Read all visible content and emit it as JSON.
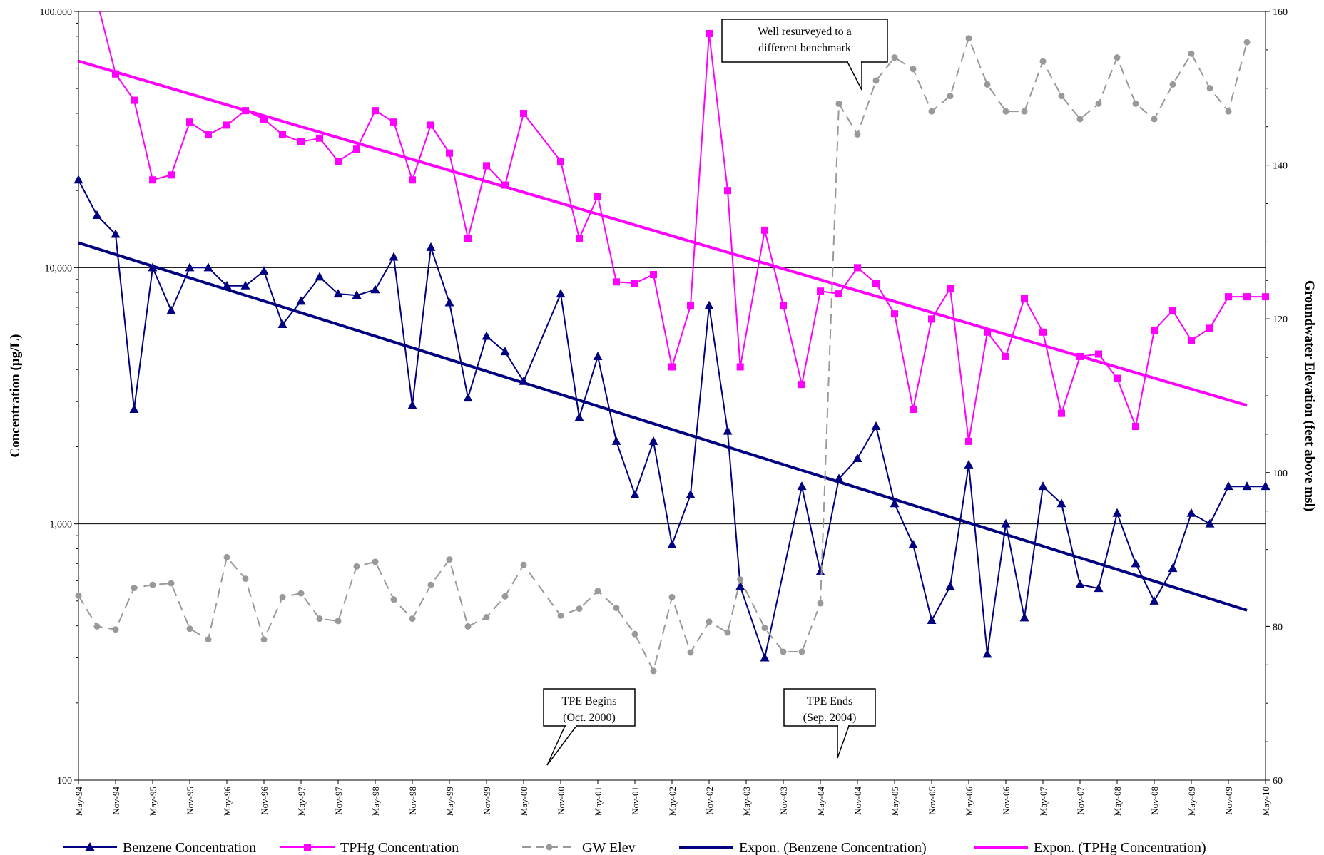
{
  "chart_data": {
    "type": "line",
    "x_tick_labels": [
      "May-94",
      "Nov-94",
      "May-95",
      "Nov-95",
      "May-96",
      "Nov-96",
      "May-97",
      "Nov-97",
      "May-98",
      "Nov-98",
      "May-99",
      "Nov-99",
      "May-00",
      "Nov-00",
      "May-01",
      "Nov-01",
      "May-02",
      "Nov-02",
      "May-03",
      "Nov-03",
      "May-04",
      "Nov-04",
      "May-05",
      "Nov-05",
      "May-06",
      "Nov-06",
      "May-07",
      "Nov-07",
      "May-08",
      "Nov-08",
      "May-09",
      "Nov-09",
      "May-10"
    ],
    "x_range": [
      1994.0,
      2010.0
    ],
    "y_left": {
      "label": "Concentration (µg/L)",
      "scale": "log",
      "range": [
        100,
        100000
      ],
      "ticks": [
        100,
        1000,
        10000,
        100000
      ],
      "tick_labels": [
        "100",
        "1,000",
        "10,000",
        "100,000"
      ]
    },
    "y_right": {
      "label": "Groundwater Elevation (feet above msl)",
      "range": [
        60,
        160
      ],
      "ticks": [
        60,
        80,
        100,
        120,
        140,
        160
      ],
      "tick_labels": [
        "60",
        "80",
        "100",
        "120",
        "140",
        "160"
      ]
    },
    "gridlines": "major horizontal (left axis)",
    "legend_position": "bottom",
    "series": [
      {
        "name": "Benzene Concentration",
        "axis": "left",
        "color": "#000080",
        "marker": "triangle",
        "x": [
          1994.0,
          1994.25,
          1994.5,
          1994.75,
          1995.0,
          1995.25,
          1995.5,
          1995.75,
          1996.0,
          1996.25,
          1996.5,
          1996.75,
          1997.0,
          1997.25,
          1997.5,
          1997.75,
          1998.0,
          1998.25,
          1998.5,
          1998.75,
          1999.0,
          1999.25,
          1999.5,
          1999.75,
          2000.0,
          2000.5,
          2000.75,
          2001.0,
          2001.25,
          2001.5,
          2001.75,
          2002.0,
          2002.25,
          2002.5,
          2002.75,
          2002.92,
          2003.25,
          2003.75,
          2004.0,
          2004.25,
          2004.5,
          2004.75,
          2005.0,
          2005.25,
          2005.5,
          2005.75,
          2006.0,
          2006.25,
          2006.5,
          2006.75,
          2007.0,
          2007.25,
          2007.5,
          2007.75,
          2008.0,
          2008.25,
          2008.5,
          2008.75,
          2009.0,
          2009.25,
          2009.5,
          2009.75,
          2010.0
        ],
        "y": [
          22000,
          16000,
          13500,
          2800,
          10000,
          6800,
          10000,
          10000,
          8500,
          8500,
          9700,
          6000,
          7400,
          9200,
          7900,
          7800,
          8200,
          11000,
          2900,
          12000,
          7300,
          3100,
          5400,
          4700,
          3600,
          7900,
          2600,
          4500,
          2100,
          1300,
          2100,
          830,
          1300,
          7100,
          2300,
          570,
          300,
          1400,
          650,
          1500,
          1800,
          2400,
          1200,
          830,
          420,
          570,
          1700,
          310,
          1000,
          430,
          1400,
          1200,
          580,
          560,
          1100,
          700,
          500,
          670,
          1100,
          1000,
          1400,
          1400,
          1400
        ]
      },
      {
        "name": "TPHg Concentration",
        "axis": "left",
        "color": "#ff00ff",
        "marker": "square",
        "x": [
          1994.25,
          1994.5,
          1994.75,
          1995.0,
          1995.25,
          1995.5,
          1995.75,
          1996.0,
          1996.25,
          1996.5,
          1996.75,
          1997.0,
          1997.25,
          1997.5,
          1997.75,
          1998.0,
          1998.25,
          1998.5,
          1998.75,
          1999.0,
          1999.25,
          1999.5,
          1999.75,
          2000.0,
          2000.5,
          2000.75,
          2001.0,
          2001.25,
          2001.5,
          2001.75,
          2002.0,
          2002.25,
          2002.5,
          2002.75,
          2002.92,
          2003.25,
          2003.5,
          2003.75,
          2004.0,
          2004.25,
          2004.5,
          2004.75,
          2005.0,
          2005.25,
          2005.5,
          2005.75,
          2006.0,
          2006.25,
          2006.5,
          2006.75,
          2007.0,
          2007.25,
          2007.5,
          2007.75,
          2008.0,
          2008.25,
          2008.5,
          2008.75,
          2009.0,
          2009.25,
          2009.5,
          2009.75,
          2010.0
        ],
        "y": [
          110000,
          57000,
          45000,
          22000,
          23000,
          37000,
          33000,
          36000,
          41000,
          38000,
          33000,
          31000,
          32000,
          26000,
          29000,
          41000,
          37000,
          22000,
          36000,
          28000,
          13000,
          25000,
          21000,
          40000,
          26000,
          13000,
          19000,
          8800,
          8700,
          9400,
          4100,
          7100,
          82000,
          20000,
          4100,
          14000,
          7100,
          3500,
          8100,
          7900,
          10000,
          8700,
          6600,
          2800,
          6300,
          8300,
          2100,
          5600,
          4500,
          7600,
          5600,
          2700,
          4500,
          4600,
          3700,
          2400,
          5700,
          6800,
          5200,
          5800,
          7700,
          7700,
          7700
        ]
      },
      {
        "name": "GW Elev",
        "axis": "right",
        "color": "#999999",
        "marker": "circle",
        "line": "dashed",
        "x": [
          1994.0,
          1994.25,
          1994.5,
          1994.75,
          1995.0,
          1995.25,
          1995.5,
          1995.75,
          1996.0,
          1996.25,
          1996.5,
          1996.75,
          1997.0,
          1997.25,
          1997.5,
          1997.75,
          1998.0,
          1998.25,
          1998.5,
          1998.75,
          1999.0,
          1999.25,
          1999.5,
          1999.75,
          2000.0,
          2000.5,
          2000.75,
          2001.0,
          2001.25,
          2001.5,
          2001.75,
          2002.0,
          2002.25,
          2002.5,
          2002.75,
          2002.92,
          2003.25,
          2003.5,
          2003.75,
          2004.0,
          2004.25,
          2004.5,
          2004.75,
          2005.0,
          2005.25,
          2005.5,
          2005.75,
          2006.0,
          2006.25,
          2006.5,
          2006.75,
          2007.0,
          2007.25,
          2007.5,
          2007.75,
          2008.0,
          2008.25,
          2008.5,
          2008.75,
          2009.0,
          2009.25,
          2009.5,
          2009.75
        ],
        "y": [
          84,
          80,
          79.6,
          85,
          85.4,
          85.6,
          79.7,
          78.3,
          89,
          86.2,
          78.3,
          83.8,
          84.3,
          81,
          80.7,
          87.8,
          88.4,
          83.5,
          81,
          85.4,
          88.7,
          80,
          81.2,
          83.9,
          88,
          81.4,
          82.3,
          84.6,
          82.4,
          79,
          74.2,
          83.8,
          76.6,
          80.6,
          79.2,
          86.1,
          79.8,
          76.7,
          76.7,
          83,
          148,
          144,
          151,
          154,
          152.5,
          147,
          149,
          156.5,
          150.5,
          147,
          147,
          153.5,
          149,
          146,
          148,
          154,
          148,
          146,
          150.5,
          154.5,
          150,
          147,
          156
        ]
      },
      {
        "name": "Expon. (Benzene Concentration)",
        "axis": "left",
        "color": "#000080",
        "trendline": "exponential",
        "x": [
          1994.0,
          2009.75
        ],
        "y": [
          12500,
          460
        ]
      },
      {
        "name": "Expon. (TPHg Concentration)",
        "axis": "left",
        "color": "#ff00ff",
        "trendline": "exponential",
        "x": [
          1994.0,
          2009.75
        ],
        "y": [
          64000,
          2900
        ]
      }
    ],
    "annotations": [
      {
        "lines": [
          "Well resurveyed to a",
          "different benchmark"
        ]
      },
      {
        "lines": [
          "TPE Begins",
          "(Oct. 2000)"
        ]
      },
      {
        "lines": [
          "TPE Ends",
          "(Sep. 2004)"
        ]
      }
    ]
  }
}
